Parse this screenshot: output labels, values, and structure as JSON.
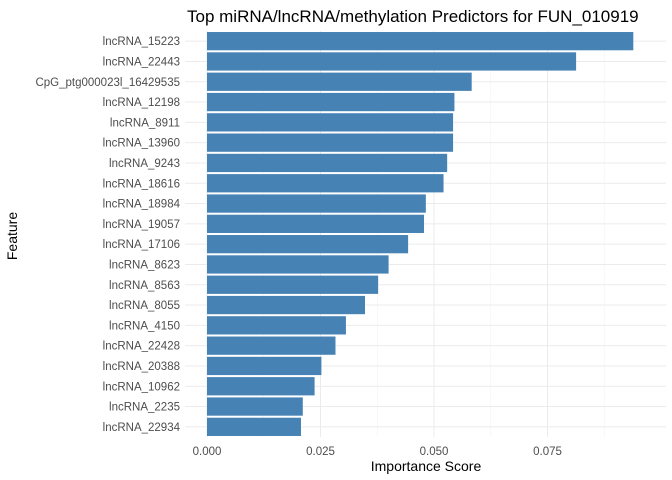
{
  "chart_data": {
    "type": "bar",
    "orientation": "horizontal",
    "title": "Top miRNA/lncRNA/methylation Predictors for FUN_010919",
    "xlabel": "Importance Score",
    "ylabel": "Feature",
    "bar_color": "#4682b4",
    "xlim": [
      0,
      0.0965
    ],
    "xticks": [
      0.0,
      0.025,
      0.05,
      0.075
    ],
    "xtick_labels": [
      "0.000",
      "0.025",
      "0.050",
      "0.075"
    ],
    "grid": true,
    "legend": "none",
    "categories": [
      "lncRNA_15223",
      "lncRNA_22443",
      "CpG_ptg000023l_16429535",
      "lncRNA_12198",
      "lncRNA_8911",
      "lncRNA_13960",
      "lncRNA_9243",
      "lncRNA_18616",
      "lncRNA_18984",
      "lncRNA_19057",
      "lncRNA_17106",
      "lncRNA_8623",
      "lncRNA_8563",
      "lncRNA_8055",
      "lncRNA_4150",
      "lncRNA_22428",
      "lncRNA_20388",
      "lncRNA_10962",
      "lncRNA_2235",
      "lncRNA_22934"
    ],
    "values": [
      0.0939,
      0.0813,
      0.0583,
      0.0545,
      0.0542,
      0.0542,
      0.0529,
      0.0521,
      0.0482,
      0.0478,
      0.0443,
      0.04,
      0.0377,
      0.0348,
      0.0306,
      0.0283,
      0.0252,
      0.0237,
      0.0211,
      0.0207
    ]
  }
}
